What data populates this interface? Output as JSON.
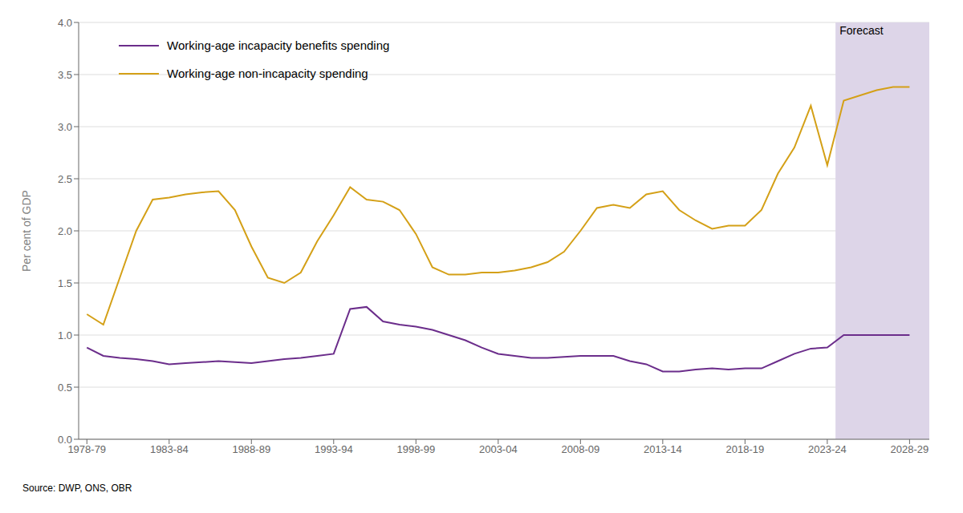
{
  "chart_data": {
    "type": "line",
    "ylabel": "Per cent of GDP",
    "source": "Source: DWP, ONS, OBR",
    "forecast": {
      "start": 2023.5,
      "label": "Forecast",
      "color": "#ddd5e8"
    },
    "xlim": [
      1977.5,
      2029.2
    ],
    "xticks": [
      {
        "value": 1978,
        "label": "1978-79"
      },
      {
        "value": 1983,
        "label": "1983-84"
      },
      {
        "value": 1988,
        "label": "1988-89"
      },
      {
        "value": 1993,
        "label": "1993-94"
      },
      {
        "value": 1998,
        "label": "1998-99"
      },
      {
        "value": 2003,
        "label": "2003-04"
      },
      {
        "value": 2008,
        "label": "2008-09"
      },
      {
        "value": 2013,
        "label": "2013-14"
      },
      {
        "value": 2018,
        "label": "2018-19"
      },
      {
        "value": 2023,
        "label": "2023-24"
      },
      {
        "value": 2028,
        "label": "2028-29"
      }
    ],
    "ylim": [
      0.0,
      4.0
    ],
    "yticks": [
      {
        "value": 0,
        "label": "0.0"
      },
      0.5,
      {
        "value": 1,
        "label": "1.0"
      },
      1.5,
      {
        "value": 2,
        "label": "2.0"
      },
      2.5,
      {
        "value": 3,
        "label": "3.0"
      },
      3.5,
      {
        "value": 4,
        "label": "4.0"
      }
    ],
    "grid": true,
    "x": [
      1978,
      1979,
      1980,
      1981,
      1982,
      1983,
      1984,
      1985,
      1986,
      1987,
      1988,
      1989,
      1990,
      1991,
      1992,
      1993,
      1994,
      1995,
      1996,
      1997,
      1998,
      1999,
      2000,
      2001,
      2002,
      2003,
      2004,
      2005,
      2006,
      2007,
      2008,
      2009,
      2010,
      2011,
      2012,
      2013,
      2014,
      2015,
      2016,
      2017,
      2018,
      2019,
      2020,
      2021,
      2022,
      2023,
      2024,
      2025,
      2026,
      2027,
      2028
    ],
    "series": [
      {
        "name": "Working-age incapacity benefits spending",
        "color": "#6b2d8b",
        "values": [
          0.88,
          0.8,
          0.78,
          0.77,
          0.75,
          0.72,
          0.73,
          0.74,
          0.75,
          0.74,
          0.73,
          0.75,
          0.77,
          0.78,
          0.8,
          0.82,
          1.25,
          1.27,
          1.13,
          1.1,
          1.08,
          1.05,
          1.0,
          0.95,
          0.88,
          0.82,
          0.8,
          0.78,
          0.78,
          0.79,
          0.8,
          0.8,
          0.8,
          0.75,
          0.72,
          0.65,
          0.65,
          0.67,
          0.68,
          0.67,
          0.68,
          0.68,
          0.75,
          0.82,
          0.87,
          0.88,
          1.0,
          1.0,
          1.0,
          1.0,
          1.0
        ]
      },
      {
        "name": "Working-age non-incapacity spending",
        "color": "#d4a017",
        "values": [
          1.2,
          1.1,
          1.55,
          2.0,
          2.3,
          2.32,
          2.35,
          2.37,
          2.38,
          2.2,
          1.85,
          1.55,
          1.5,
          1.6,
          1.9,
          2.15,
          2.42,
          2.3,
          2.28,
          2.2,
          1.97,
          1.65,
          1.58,
          1.58,
          1.6,
          1.6,
          1.62,
          1.65,
          1.7,
          1.8,
          2.0,
          2.22,
          2.25,
          2.22,
          2.35,
          2.38,
          2.2,
          2.1,
          2.02,
          2.05,
          2.05,
          2.2,
          2.55,
          2.8,
          3.2,
          2.63,
          3.25,
          3.3,
          3.35,
          3.38,
          3.38
        ]
      }
    ]
  }
}
